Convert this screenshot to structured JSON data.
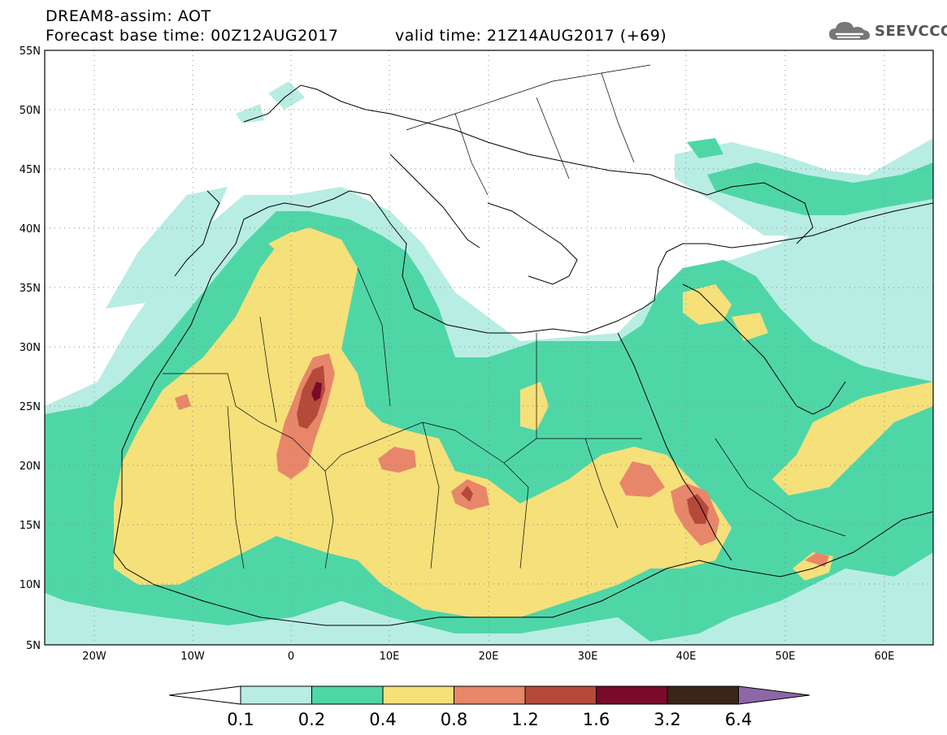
{
  "header": {
    "title": "DREAM8-assim: AOT",
    "base_time": "Forecast base time: 00Z12AUG2017",
    "valid_time": "valid time: 21Z14AUG2017 (+69)"
  },
  "logo": {
    "text": "SEEVCCC",
    "icon": "cloud-icon"
  },
  "axes": {
    "lat_labels": [
      "55N",
      "50N",
      "45N",
      "40N",
      "35N",
      "30N",
      "25N",
      "20N",
      "15N",
      "10N",
      "5N"
    ],
    "lon_labels": [
      "20W",
      "10W",
      "0",
      "10E",
      "20E",
      "30E",
      "40E",
      "50E",
      "60E"
    ]
  },
  "colorbar": {
    "labels": [
      "0.1",
      "0.2",
      "0.4",
      "0.8",
      "1.2",
      "1.6",
      "3.2",
      "6.4"
    ],
    "colors": [
      "#ffffff",
      "#b8ede3",
      "#4fd6a7",
      "#f5e07a",
      "#e8866a",
      "#b54a3a",
      "#7a0a2a",
      "#3a2518",
      "#8e67a8"
    ]
  },
  "colors": {
    "aot_0_1": "#b8ede3",
    "aot_0_2": "#4fd6a7",
    "aot_0_4": "#f5e07a",
    "aot_0_8": "#e8866a",
    "aot_1_2": "#b54a3a",
    "aot_1_6": "#7a0a2a"
  }
}
